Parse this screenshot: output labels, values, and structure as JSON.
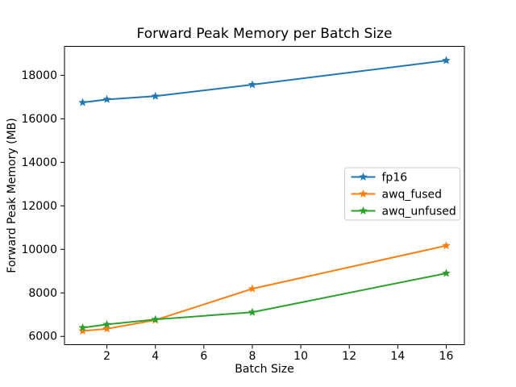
{
  "figure": {
    "background": "#ffffff"
  },
  "chart_data": {
    "type": "line",
    "title": "Forward Peak Memory per Batch Size",
    "xlabel": "Batch Size",
    "ylabel": "Forward Peak Memory (MB)",
    "x": [
      1,
      2,
      4,
      8,
      16
    ],
    "series": [
      {
        "name": "fp16",
        "color": "#1f77b4",
        "marker": "star",
        "values": [
          16750,
          16890,
          17040,
          17570,
          18680
        ]
      },
      {
        "name": "awq_fused",
        "color": "#ff7f0e",
        "marker": "star",
        "values": [
          6250,
          6350,
          6750,
          8190,
          10170
        ]
      },
      {
        "name": "awq_unfused",
        "color": "#2ca02c",
        "marker": "star",
        "values": [
          6400,
          6550,
          6780,
          7110,
          8900
        ]
      }
    ],
    "xticks": [
      2,
      4,
      6,
      8,
      10,
      12,
      14,
      16
    ],
    "yticks": [
      6000,
      8000,
      10000,
      12000,
      14000,
      16000,
      18000
    ],
    "xlim": [
      0.25,
      16.75
    ],
    "ylim": [
      5620,
      19330
    ],
    "grid": false,
    "legend": {
      "position": "center-right",
      "entries": [
        "fp16",
        "awq_fused",
        "awq_unfused"
      ],
      "border_color": "#cccccc",
      "background": "#ffffff"
    },
    "axis_color": "#000000",
    "text_color": "#000000"
  }
}
